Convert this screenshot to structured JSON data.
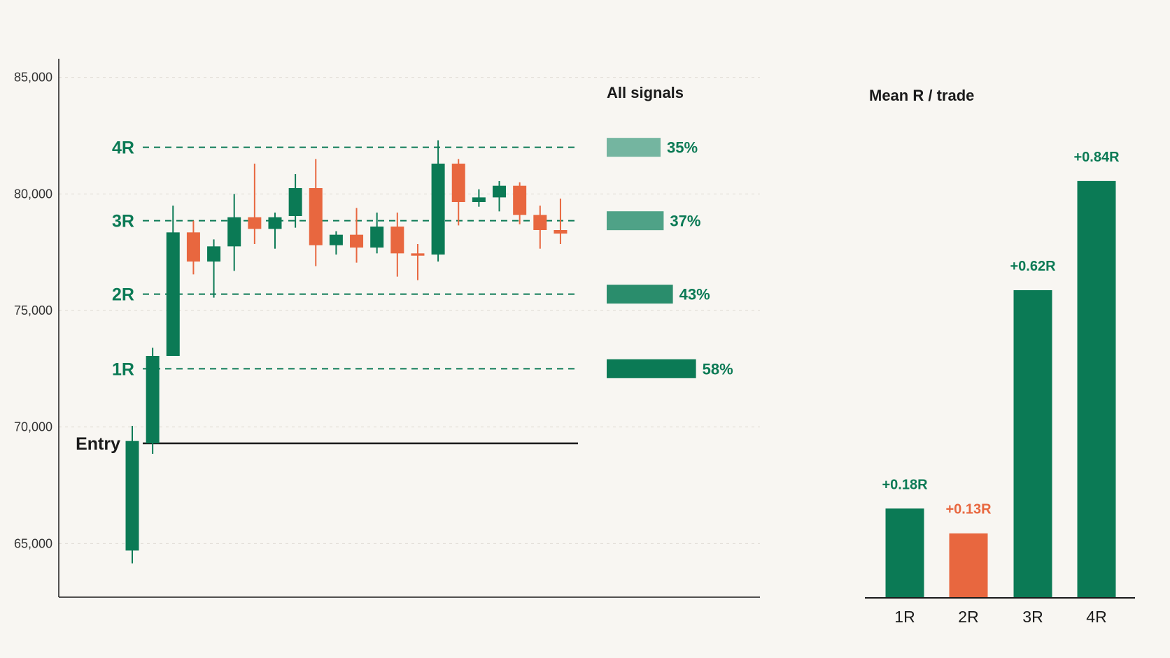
{
  "colors": {
    "up": "#0b7a55",
    "down": "#e8673f",
    "axis": "#1a1a1a",
    "grid": "#dedad3",
    "level": "#0b7a55",
    "entry": "#1a1a1a"
  },
  "chart_data": [
    {
      "type": "candlestick",
      "ylim": [
        62700,
        85800
      ],
      "yticks": [
        65000,
        70000,
        75000,
        80000,
        85000
      ],
      "ytick_labels": [
        "65,000",
        "70,000",
        "75,000",
        "80,000",
        "85,000"
      ],
      "entry": {
        "label": "Entry",
        "value": 69300
      },
      "levels": [
        {
          "label": "1R",
          "value": 72500
        },
        {
          "label": "2R",
          "value": 75700
        },
        {
          "label": "3R",
          "value": 78850
        },
        {
          "label": "4R",
          "value": 82000
        }
      ],
      "candles": [
        {
          "o": 64700,
          "h": 70050,
          "l": 64150,
          "c": 69400
        },
        {
          "o": 69300,
          "h": 73400,
          "l": 68850,
          "c": 73050
        },
        {
          "o": 73050,
          "h": 79500,
          "l": 73050,
          "c": 78350
        },
        {
          "o": 78350,
          "h": 78850,
          "l": 76550,
          "c": 77100
        },
        {
          "o": 77100,
          "h": 78050,
          "l": 75550,
          "c": 77750
        },
        {
          "o": 77750,
          "h": 80000,
          "l": 76700,
          "c": 79000
        },
        {
          "o": 79000,
          "h": 81300,
          "l": 77850,
          "c": 78500
        },
        {
          "o": 78500,
          "h": 79200,
          "l": 77650,
          "c": 79000
        },
        {
          "o": 79050,
          "h": 80850,
          "l": 78550,
          "c": 80250
        },
        {
          "o": 80250,
          "h": 81500,
          "l": 76900,
          "c": 77800
        },
        {
          "o": 77800,
          "h": 78400,
          "l": 77400,
          "c": 78250
        },
        {
          "o": 78250,
          "h": 79400,
          "l": 77050,
          "c": 77700
        },
        {
          "o": 77700,
          "h": 79200,
          "l": 77450,
          "c": 78600
        },
        {
          "o": 78600,
          "h": 79200,
          "l": 76450,
          "c": 77450
        },
        {
          "o": 77450,
          "h": 77850,
          "l": 76300,
          "c": 77350
        },
        {
          "o": 77400,
          "h": 82300,
          "l": 77100,
          "c": 81300
        },
        {
          "o": 81300,
          "h": 81500,
          "l": 78650,
          "c": 79650
        },
        {
          "o": 79650,
          "h": 80200,
          "l": 79450,
          "c": 79850
        },
        {
          "o": 79850,
          "h": 80550,
          "l": 79250,
          "c": 80350
        },
        {
          "o": 80350,
          "h": 80500,
          "l": 78700,
          "c": 79100
        },
        {
          "o": 79100,
          "h": 79500,
          "l": 77650,
          "c": 78450
        },
        {
          "o": 78450,
          "h": 79800,
          "l": 77850,
          "c": 78300
        }
      ]
    },
    {
      "type": "bar",
      "title": "All signals",
      "orientation": "horizontal",
      "categories": [
        "4R",
        "3R",
        "2R",
        "1R"
      ],
      "values": [
        35,
        37,
        43,
        58
      ],
      "labels": [
        "35%",
        "37%",
        "43%",
        "58%"
      ],
      "bar_colors": [
        "#74b5a0",
        "#4fa287",
        "#2a8d6c",
        "#0b7a55"
      ]
    },
    {
      "type": "bar",
      "title": "Mean R / trade",
      "categories": [
        "1R",
        "2R",
        "3R",
        "4R"
      ],
      "values": [
        0.18,
        0.13,
        0.62,
        0.84
      ],
      "labels": [
        "+0.18R",
        "+0.13R",
        "+0.62R",
        "+0.84R"
      ],
      "bar_colors": [
        "#0b7a55",
        "#e8673f",
        "#0b7a55",
        "#0b7a55"
      ],
      "ylim": [
        0,
        0.93
      ]
    }
  ]
}
